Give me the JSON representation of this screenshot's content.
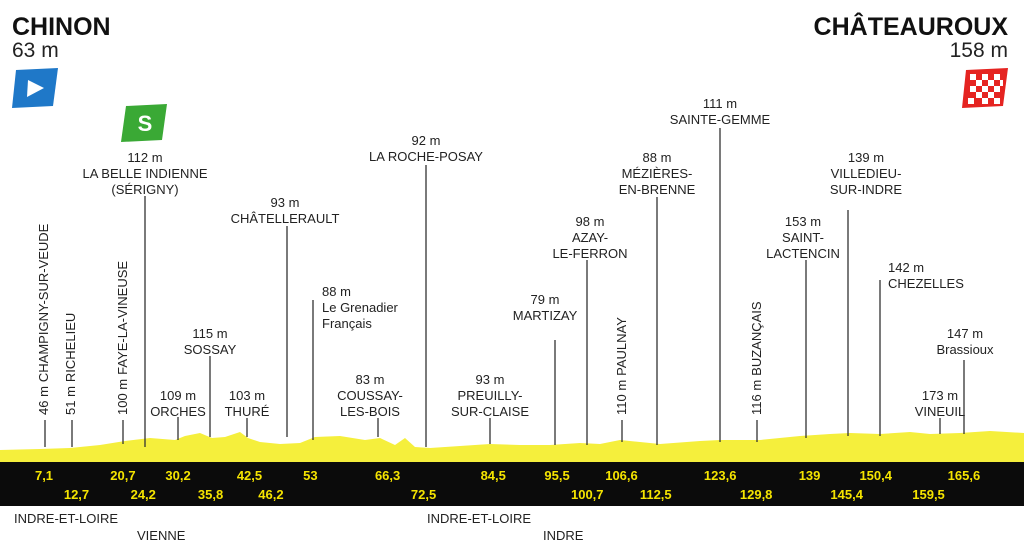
{
  "header": {
    "start": {
      "name": "CHINON",
      "altitude": "63 m"
    },
    "finish": {
      "name": "CHÂTEAUROUX",
      "altitude": "158 m"
    }
  },
  "waypoints": [
    {
      "altitude": "46 m",
      "name": "CHAMPIGNY-SUR-VEUDE"
    },
    {
      "altitude": "51 m",
      "name": "RICHELIEU"
    },
    {
      "altitude": "100 m",
      "name": "FAYE-LA-VINEUSE"
    },
    {
      "altitude": "112 m",
      "lines": [
        "LA BELLE INDIENNE",
        "(SÉRIGNY)"
      ]
    },
    {
      "altitude": "109 m",
      "lines": [
        "ORCHES"
      ]
    },
    {
      "altitude": "115 m",
      "lines": [
        "SOSSAY"
      ]
    },
    {
      "altitude": "103 m",
      "lines": [
        "THURÉ"
      ]
    },
    {
      "altitude": "93 m",
      "lines": [
        "CHÂTELLERAULT"
      ]
    },
    {
      "altitude": "88 m",
      "lines": [
        "Le Grenadier",
        "Français"
      ]
    },
    {
      "altitude": "83 m",
      "lines": [
        "COUSSAY-",
        "LES-BOIS"
      ]
    },
    {
      "altitude": "92 m",
      "lines": [
        "LA ROCHE-POSAY"
      ]
    },
    {
      "altitude": "93 m",
      "lines": [
        "PREUILLY-",
        "SUR-CLAISE"
      ]
    },
    {
      "altitude": "79 m",
      "lines": [
        "MARTIZAY"
      ]
    },
    {
      "altitude": "98 m",
      "lines": [
        "AZAY-",
        "LE-FERRON"
      ]
    },
    {
      "altitude": "110 m",
      "name": "PAULNAY"
    },
    {
      "altitude": "88 m",
      "lines": [
        "MÉZIÈRES-",
        "EN-BRENNE"
      ]
    },
    {
      "altitude": "111 m",
      "lines": [
        "SAINTE-GEMME"
      ]
    },
    {
      "altitude": "116 m",
      "name": "BUZANÇAIS"
    },
    {
      "altitude": "153 m",
      "lines": [
        "SAINT-",
        "LACTENCIN"
      ]
    },
    {
      "altitude": "139 m",
      "lines": [
        "VILLEDIEU-",
        "SUR-INDRE"
      ]
    },
    {
      "altitude": "142 m",
      "lines": [
        "CHEZELLES"
      ]
    },
    {
      "altitude": "173 m",
      "lines": [
        "VINEUIL"
      ]
    },
    {
      "altitude": "147 m",
      "lines": [
        "Brassioux"
      ]
    }
  ],
  "km_top": [
    {
      "value": 7.1,
      "label": "7,1"
    },
    {
      "value": 20.7,
      "label": "20,7"
    },
    {
      "value": 30.2,
      "label": "30,2"
    },
    {
      "value": 42.5,
      "label": "42,5"
    },
    53,
    {
      "value": 66.3,
      "label": "66,3"
    },
    {
      "value": 84.5,
      "label": "84,5"
    },
    {
      "value": 95.5,
      "label": "95,5"
    },
    {
      "value": 106.6,
      "label": "106,6"
    },
    {
      "value": 123.6,
      "label": "123,6"
    },
    139,
    {
      "value": 150.4,
      "label": "150,4"
    },
    {
      "value": 165.6,
      "label": "165,6"
    }
  ],
  "km_bottom": [
    {
      "value": 12.7,
      "label": "12,7"
    },
    {
      "value": 24.2,
      "label": "24,2"
    },
    {
      "value": 35.8,
      "label": "35,8"
    },
    {
      "value": 46.2,
      "label": "46,2"
    },
    {
      "value": 72.5,
      "label": "72,5"
    },
    {
      "value": 100.7,
      "label": "100,7"
    },
    {
      "value": 112.5,
      "label": "112,5"
    },
    {
      "value": 129.8,
      "label": "129,8"
    },
    {
      "value": 145.4,
      "label": "145,4"
    },
    {
      "value": 159.5,
      "label": "159,5"
    }
  ],
  "departments": [
    "INDRE-ET-LOIRE",
    "VIENNE",
    "INDRE-ET-LOIRE",
    "INDRE"
  ]
}
